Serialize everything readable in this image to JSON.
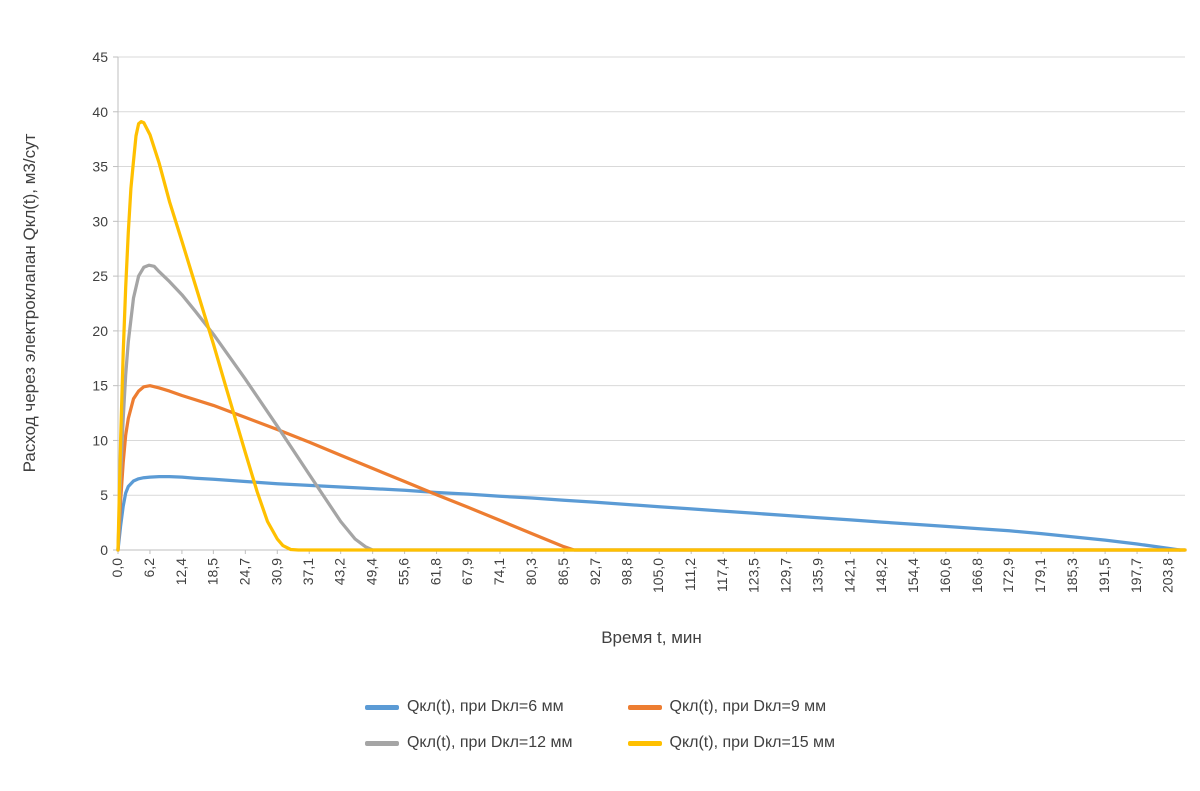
{
  "chart_data": {
    "type": "line",
    "title": "",
    "xlabel": "Время t, мин",
    "ylabel": "Расход через электроклапан  Qкл(t), м3/сут",
    "xlim": [
      0,
      207
    ],
    "ylim": [
      0,
      45
    ],
    "y_step": 5,
    "grid": true,
    "legend_position": "bottom",
    "grid_color": "#D9D9D9",
    "axis_color": "#BFBFBF",
    "text_color": "#404040",
    "y_tick_labels": [
      "0",
      "5",
      "10",
      "15",
      "20",
      "25",
      "30",
      "35",
      "40",
      "45"
    ],
    "x_tick_labels": [
      "0,0",
      "6,2",
      "12,4",
      "18,5",
      "24,7",
      "30,9",
      "37,1",
      "43,2",
      "49,4",
      "55,6",
      "61,8",
      "67,9",
      "74,1",
      "80,3",
      "86,5",
      "92,7",
      "98,8",
      "105,0",
      "111,2",
      "117,4",
      "123,5",
      "129,7",
      "135,9",
      "142,1",
      "148,2",
      "154,4",
      "160,6",
      "166,8",
      "172,9",
      "179,1",
      "185,3",
      "191,5",
      "197,7",
      "203,8"
    ],
    "series": [
      {
        "name": "Qкл(t), при Dкл=6 мм",
        "color": "#5B9BD5",
        "points": [
          [
            0,
            0
          ],
          [
            0.5,
            2.2
          ],
          [
            1,
            4
          ],
          [
            1.5,
            5.2
          ],
          [
            2,
            5.8
          ],
          [
            3,
            6.3
          ],
          [
            4,
            6.5
          ],
          [
            5,
            6.6
          ],
          [
            6.2,
            6.65
          ],
          [
            8,
            6.7
          ],
          [
            10,
            6.7
          ],
          [
            12.4,
            6.65
          ],
          [
            15,
            6.55
          ],
          [
            18.5,
            6.45
          ],
          [
            24.7,
            6.25
          ],
          [
            30.9,
            6.05
          ],
          [
            37.1,
            5.9
          ],
          [
            43.2,
            5.75
          ],
          [
            49.4,
            5.6
          ],
          [
            55.6,
            5.45
          ],
          [
            61.8,
            5.25
          ],
          [
            67.9,
            5.1
          ],
          [
            74.1,
            4.9
          ],
          [
            80.3,
            4.75
          ],
          [
            86.5,
            4.55
          ],
          [
            92.7,
            4.35
          ],
          [
            98.8,
            4.15
          ],
          [
            105,
            3.95
          ],
          [
            111.2,
            3.75
          ],
          [
            117.4,
            3.55
          ],
          [
            123.5,
            3.35
          ],
          [
            129.7,
            3.15
          ],
          [
            135.9,
            2.95
          ],
          [
            142.1,
            2.75
          ],
          [
            148.2,
            2.55
          ],
          [
            154.4,
            2.35
          ],
          [
            160.6,
            2.15
          ],
          [
            166.8,
            1.95
          ],
          [
            172.9,
            1.75
          ],
          [
            179.1,
            1.5
          ],
          [
            185.3,
            1.2
          ],
          [
            191.5,
            0.9
          ],
          [
            197.7,
            0.55
          ],
          [
            203.8,
            0.15
          ],
          [
            206,
            0
          ]
        ]
      },
      {
        "name": "Qкл(t), при Dкл=9 мм",
        "color": "#ED7D31",
        "points": [
          [
            0,
            0
          ],
          [
            0.5,
            4.5
          ],
          [
            1,
            8
          ],
          [
            1.5,
            10.5
          ],
          [
            2,
            12
          ],
          [
            3,
            13.8
          ],
          [
            4,
            14.5
          ],
          [
            5,
            14.9
          ],
          [
            6.2,
            15
          ],
          [
            8,
            14.8
          ],
          [
            10,
            14.5
          ],
          [
            12.4,
            14.1
          ],
          [
            18.5,
            13.2
          ],
          [
            24.7,
            12.1
          ],
          [
            30.9,
            11
          ],
          [
            37.1,
            9.85
          ],
          [
            43.2,
            8.65
          ],
          [
            49.4,
            7.45
          ],
          [
            55.6,
            6.25
          ],
          [
            61.8,
            5.05
          ],
          [
            67.9,
            3.9
          ],
          [
            74.1,
            2.7
          ],
          [
            80.3,
            1.5
          ],
          [
            86.5,
            0.3
          ],
          [
            88.5,
            0
          ],
          [
            207,
            0
          ]
        ]
      },
      {
        "name": "Qкл(t), при Dкл=12 мм",
        "color": "#A5A5A5",
        "points": [
          [
            0,
            0
          ],
          [
            0.5,
            7
          ],
          [
            1,
            12
          ],
          [
            1.5,
            16
          ],
          [
            2,
            19
          ],
          [
            3,
            23
          ],
          [
            4,
            25
          ],
          [
            5,
            25.8
          ],
          [
            6,
            26
          ],
          [
            7,
            25.9
          ],
          [
            8,
            25.4
          ],
          [
            10,
            24.5
          ],
          [
            12.4,
            23.3
          ],
          [
            15,
            21.8
          ],
          [
            18.5,
            19.7
          ],
          [
            24.7,
            15.6
          ],
          [
            30.9,
            11.3
          ],
          [
            37.1,
            6.9
          ],
          [
            43.2,
            2.6
          ],
          [
            46,
            1
          ],
          [
            48,
            0.3
          ],
          [
            49.4,
            0
          ],
          [
            207,
            0
          ]
        ]
      },
      {
        "name": "Qкл(t), при Dкл=15 мм",
        "color": "#FFC000",
        "points": [
          [
            0,
            0
          ],
          [
            0.5,
            10
          ],
          [
            1,
            18
          ],
          [
            1.5,
            24
          ],
          [
            2,
            29
          ],
          [
            2.5,
            33
          ],
          [
            3,
            35.5
          ],
          [
            3.5,
            37.8
          ],
          [
            4,
            38.9
          ],
          [
            4.5,
            39.1
          ],
          [
            5,
            39
          ],
          [
            6.2,
            37.9
          ],
          [
            8,
            35.3
          ],
          [
            10,
            31.8
          ],
          [
            12.4,
            28.2
          ],
          [
            15,
            24.2
          ],
          [
            18.5,
            18.8
          ],
          [
            21,
            14.8
          ],
          [
            24.7,
            8.9
          ],
          [
            27,
            5.3
          ],
          [
            29,
            2.6
          ],
          [
            30.9,
            1
          ],
          [
            32,
            0.4
          ],
          [
            33.5,
            0.05
          ],
          [
            35,
            0
          ],
          [
            207,
            0
          ]
        ]
      }
    ]
  }
}
